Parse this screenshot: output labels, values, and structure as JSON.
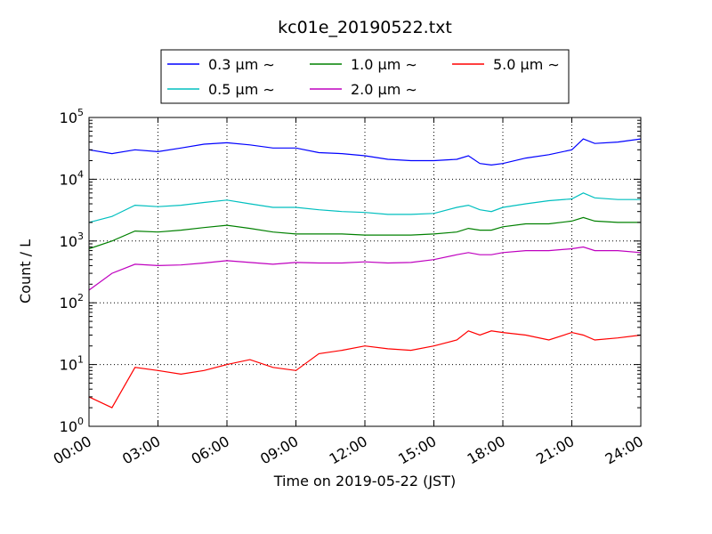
{
  "chart_data": {
    "type": "line",
    "title": "kc01e_20190522.txt",
    "xlabel": "Time on 2019-05-22 (JST)",
    "ylabel": "Count / L",
    "yscale": "log",
    "ylim": [
      1,
      100000
    ],
    "xlim": [
      "2019-05-22 00:00",
      "2019-05-23 00:00"
    ],
    "grid": true,
    "legend_position": "top-center",
    "x_ticks": [
      "00:00",
      "03:00",
      "06:00",
      "09:00",
      "12:00",
      "15:00",
      "18:00",
      "21:00",
      "24:00"
    ],
    "y_ticks": [
      {
        "value": 1,
        "base": "10",
        "exp": "0"
      },
      {
        "value": 10,
        "base": "10",
        "exp": "1"
      },
      {
        "value": 100,
        "base": "10",
        "exp": "2"
      },
      {
        "value": 1000,
        "base": "10",
        "exp": "3"
      },
      {
        "value": 10000,
        "base": "10",
        "exp": "4"
      },
      {
        "value": 100000,
        "base": "10",
        "exp": "5"
      }
    ],
    "x_hours": [
      0,
      1,
      2,
      3,
      4,
      5,
      6,
      7,
      8,
      9,
      10,
      11,
      12,
      13,
      14,
      15,
      16,
      16.5,
      17,
      17.5,
      18,
      19,
      20,
      21,
      21.5,
      22,
      23,
      24
    ],
    "series": [
      {
        "name": "0.3 µm ∼",
        "color": "#0000ff",
        "values": [
          30000,
          26000,
          30000,
          28000,
          32000,
          37000,
          39000,
          36000,
          32000,
          32000,
          27000,
          26000,
          24000,
          21000,
          20000,
          20000,
          21000,
          24000,
          18000,
          17000,
          18000,
          22000,
          25000,
          30000,
          45000,
          38000,
          40000,
          45000
        ]
      },
      {
        "name": "0.5 µm ∼",
        "color": "#00bfbf",
        "values": [
          2000,
          2500,
          3800,
          3600,
          3800,
          4200,
          4600,
          4000,
          3500,
          3500,
          3200,
          3000,
          2900,
          2700,
          2700,
          2800,
          3500,
          3800,
          3200,
          3000,
          3500,
          4000,
          4500,
          4800,
          6000,
          5000,
          4700,
          4700
        ]
      },
      {
        "name": "1.0 µm ∼",
        "color": "#008000",
        "values": [
          750,
          1000,
          1450,
          1400,
          1500,
          1650,
          1800,
          1600,
          1400,
          1300,
          1300,
          1300,
          1250,
          1250,
          1250,
          1300,
          1400,
          1600,
          1500,
          1500,
          1700,
          1900,
          1900,
          2100,
          2400,
          2100,
          2000,
          2000
        ]
      },
      {
        "name": "2.0 µm ∼",
        "color": "#bf00bf",
        "values": [
          160,
          300,
          420,
          400,
          410,
          440,
          480,
          450,
          420,
          450,
          440,
          440,
          460,
          440,
          450,
          500,
          600,
          650,
          600,
          600,
          650,
          700,
          700,
          750,
          800,
          700,
          700,
          650
        ]
      },
      {
        "name": "5.0 µm ∼",
        "color": "#ff0000",
        "values": [
          3,
          2,
          9,
          8,
          7,
          8,
          10,
          12,
          9,
          8,
          15,
          17,
          20,
          18,
          17,
          20,
          25,
          35,
          30,
          35,
          33,
          30,
          25,
          33,
          30,
          25,
          27,
          30
        ]
      }
    ]
  }
}
